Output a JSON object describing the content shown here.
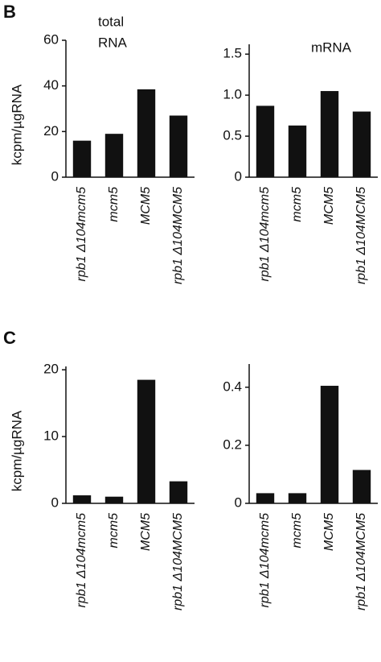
{
  "chart_data": [
    {
      "type": "bar",
      "panel_label": "B",
      "title": [
        "total",
        "RNA"
      ],
      "ylabel": "kcpm/µgRNA",
      "categories": [
        "rpb1 Δ104mcm5",
        "mcm5",
        "MCM5",
        "rpb1 Δ104MCM5"
      ],
      "values": [
        16,
        19,
        38.5,
        27
      ],
      "color": "#111111",
      "ylim": [
        0,
        60
      ],
      "yticks": [
        0,
        20,
        40,
        60
      ]
    },
    {
      "type": "bar",
      "title": [
        "mRNA"
      ],
      "categories": [
        "rpb1 Δ104mcm5",
        "mcm5",
        "MCM5",
        "rpb1 Δ104MCM5"
      ],
      "values": [
        0.87,
        0.63,
        1.05,
        0.8
      ],
      "color": "#111111",
      "ylim": [
        0,
        1.62
      ],
      "yticks": [
        0,
        0.5,
        {
          "value": 1,
          "label": "1.0"
        },
        1.5
      ]
    },
    {
      "type": "bar",
      "panel_label": "C",
      "ylabel": "kcpm/µgRNA",
      "categories": [
        "rpb1 Δ104mcm5",
        "mcm5",
        "MCM5",
        "rpb1 Δ104MCM5"
      ],
      "values": [
        1.2,
        1.0,
        18.5,
        3.3
      ],
      "color": "#111111",
      "ylim": [
        0,
        20.5
      ],
      "yticks": [
        0,
        10,
        20
      ]
    },
    {
      "type": "bar",
      "categories": [
        "rpb1 Δ104mcm5",
        "mcm5",
        "MCM5",
        "rpb1 Δ104MCM5"
      ],
      "values": [
        0.035,
        0.035,
        0.405,
        0.115
      ],
      "color": "#111111",
      "ylim": [
        0,
        0.48
      ],
      "yticks": [
        0,
        0.2,
        0.4
      ]
    }
  ]
}
